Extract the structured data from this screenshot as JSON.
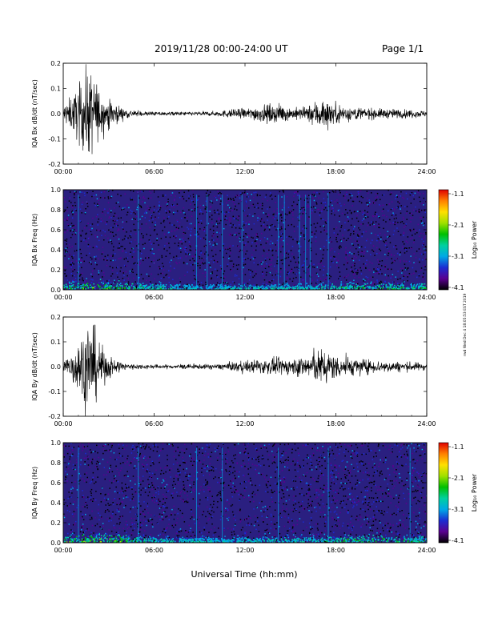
{
  "header": {
    "title": "2019/11/28  00:00-24:00 UT",
    "page": "Page 1/1"
  },
  "xlabel": "Universal Time (hh:mm)",
  "stamp": "rwd Wed Dec 4 18:05:53 EST 2019",
  "colors": {
    "spectrogram_background": "#2a1f80",
    "colorbar": [
      "#000000",
      "#5a0090",
      "#1c2cd2",
      "#00a8e6",
      "#00d0a0",
      "#00c000",
      "#a0e000",
      "#ffe000",
      "#ff8000",
      "#e00000"
    ]
  },
  "chart_data": [
    {
      "type": "line",
      "name": "bx-dbdt",
      "ylabel": "IQA Bx dB/dt (nT/sec)",
      "xlim": [
        0,
        24
      ],
      "ylim": [
        -0.2,
        0.2
      ],
      "yticks": [
        "0.2",
        "0.1",
        "0.0",
        "-0.1",
        "-0.2"
      ],
      "xticks": [
        "00:00",
        "06:00",
        "12:00",
        "18:00",
        "24:00"
      ],
      "envelope": {
        "t": [
          0,
          0.5,
          1.0,
          1.5,
          2.0,
          2.5,
          3.0,
          3.5,
          4.0,
          5.0,
          6.0,
          7.0,
          8.0,
          9.0,
          10.0,
          11.0,
          12.0,
          13.0,
          14.0,
          15.0,
          16.0,
          16.5,
          17.0,
          17.5,
          18.0,
          19.0,
          20.0,
          21.0,
          22.0,
          23.0,
          24.0
        ],
        "amp": [
          0.045,
          0.08,
          0.13,
          0.21,
          0.2,
          0.09,
          0.07,
          0.05,
          0.025,
          0.012,
          0.01,
          0.01,
          0.01,
          0.01,
          0.012,
          0.02,
          0.025,
          0.04,
          0.045,
          0.03,
          0.03,
          0.055,
          0.08,
          0.065,
          0.05,
          0.035,
          0.028,
          0.024,
          0.022,
          0.02,
          0.015
        ]
      }
    },
    {
      "type": "heatmap",
      "name": "bx-freq",
      "ylabel": "IQA Bx Freq (Hz)",
      "xlim": [
        0,
        24
      ],
      "ylim": [
        0.0,
        1.0
      ],
      "yticks": [
        "1.0",
        "0.8",
        "0.6",
        "0.4",
        "0.2",
        "0.0"
      ],
      "xticks": [
        "00:00",
        "06:00",
        "12:00",
        "18:00",
        "24:00"
      ],
      "colorbar_label": "Log₁₀ Power",
      "colorbar_ticks": [
        "-1.1",
        "-2.1",
        "-3.1",
        "-4.1"
      ],
      "vertical_lines_hours": [
        1.0,
        4.95,
        8.8,
        9.5,
        10.5,
        11.8,
        14.2,
        14.6,
        15.6,
        16.0,
        16.3,
        17.5
      ],
      "low_freq_band_strength": [
        0.5,
        0.85,
        0.6,
        0.4,
        0.2,
        0.15,
        0.2,
        0.25,
        0.3,
        0.45,
        0.55,
        0.5,
        0.4
      ]
    },
    {
      "type": "line",
      "name": "by-dbdt",
      "ylabel": "IQA By dB/dt (nT/sec)",
      "xlim": [
        0,
        24
      ],
      "ylim": [
        -0.2,
        0.2
      ],
      "yticks": [
        "0.2",
        "0.1",
        "0.0",
        "-0.1",
        "-0.2"
      ],
      "xticks": [
        "00:00",
        "06:00",
        "12:00",
        "18:00",
        "24:00"
      ],
      "envelope": {
        "t": [
          0,
          0.5,
          1.0,
          1.5,
          2.0,
          2.5,
          3.0,
          3.5,
          4.0,
          5.0,
          6.0,
          7.0,
          8.0,
          9.0,
          10.0,
          11.0,
          12.0,
          13.0,
          14.0,
          15.0,
          16.0,
          16.5,
          17.0,
          17.5,
          18.0,
          19.0,
          20.0,
          21.0,
          22.0,
          23.0,
          24.0
        ],
        "amp": [
          0.04,
          0.07,
          0.14,
          0.2,
          0.2,
          0.1,
          0.06,
          0.04,
          0.02,
          0.012,
          0.01,
          0.01,
          0.012,
          0.012,
          0.012,
          0.02,
          0.03,
          0.035,
          0.04,
          0.04,
          0.055,
          0.075,
          0.085,
          0.075,
          0.06,
          0.045,
          0.035,
          0.03,
          0.025,
          0.022,
          0.018
        ]
      }
    },
    {
      "type": "heatmap",
      "name": "by-freq",
      "ylabel": "IQA By Freq (Hz)",
      "xlim": [
        0,
        24
      ],
      "ylim": [
        0.0,
        1.0
      ],
      "yticks": [
        "1.0",
        "0.8",
        "0.6",
        "0.4",
        "0.2",
        "0.0"
      ],
      "xticks": [
        "00:00",
        "06:00",
        "12:00",
        "18:00",
        "24:00"
      ],
      "colorbar_label": "Log₁₀ Power",
      "colorbar_ticks": [
        "-1.1",
        "-2.1",
        "-3.1",
        "-4.1"
      ],
      "vertical_lines_hours": [
        1.0,
        4.95,
        8.8,
        10.5,
        14.2,
        17.5,
        22.9
      ],
      "low_freq_band_strength": [
        0.6,
        0.9,
        0.65,
        0.4,
        0.25,
        0.2,
        0.25,
        0.3,
        0.35,
        0.5,
        0.6,
        0.55,
        0.45
      ]
    }
  ]
}
